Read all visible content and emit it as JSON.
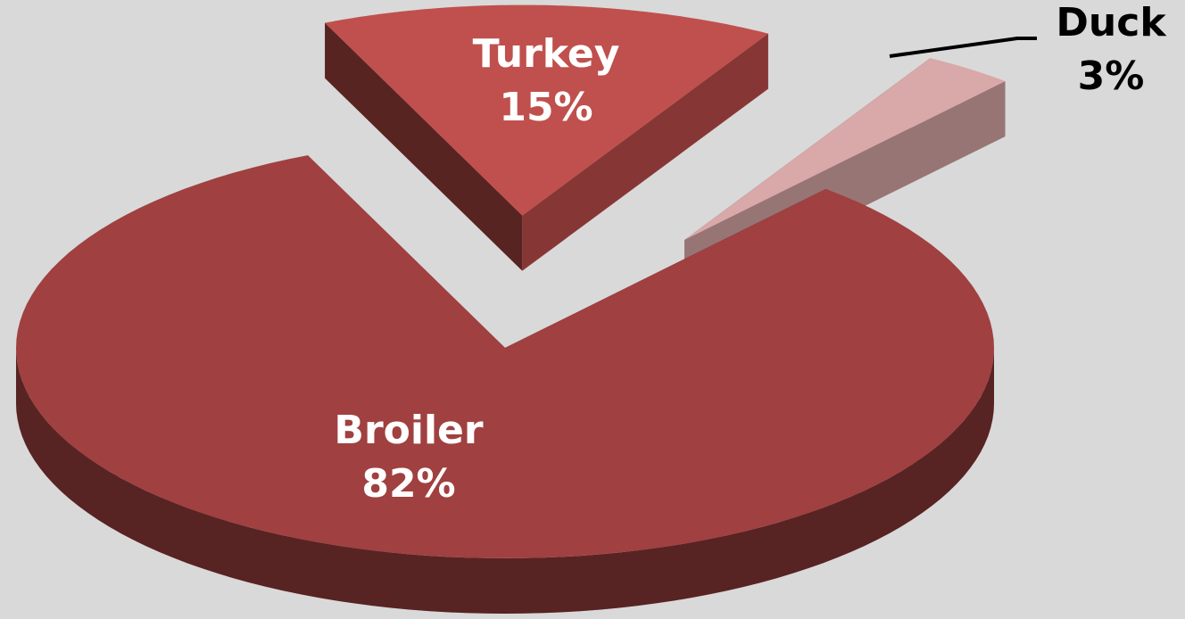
{
  "chart_data": {
    "type": "pie",
    "categories": [
      "Broiler",
      "Turkey",
      "Duck"
    ],
    "values": [
      82,
      15,
      3
    ],
    "value_labels": [
      "82%",
      "15%",
      "3%"
    ],
    "colors": [
      "#a04040",
      "#c0504d",
      "#d9a8a8"
    ]
  }
}
